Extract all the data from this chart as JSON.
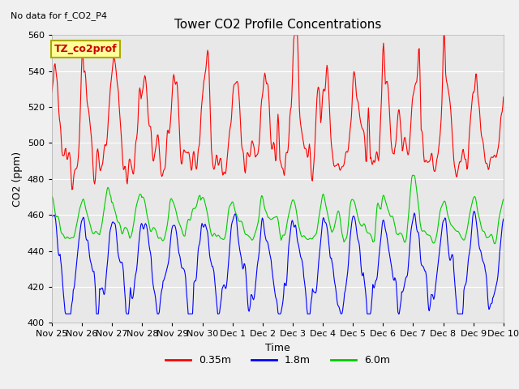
{
  "title": "Tower CO2 Profile Concentrations",
  "subtitle": "No data for f_CO2_P4",
  "xlabel": "Time",
  "ylabel": "CO2 (ppm)",
  "ylim": [
    400,
    560
  ],
  "yticks": [
    400,
    420,
    440,
    460,
    480,
    500,
    520,
    540,
    560
  ],
  "x_tick_labels": [
    "Nov 25",
    "Nov 26",
    "Nov 27",
    "Nov 28",
    "Nov 29",
    "Nov 30",
    "Dec 1",
    "Dec 2",
    "Dec 3",
    "Dec 4",
    "Dec 5",
    "Dec 6",
    "Dec 7",
    "Dec 8",
    "Dec 9",
    "Dec 10"
  ],
  "legend_labels": [
    "0.35m",
    "1.8m",
    "6.0m"
  ],
  "legend_colors": [
    "#ff0000",
    "#0000ff",
    "#00cc00"
  ],
  "line_width": 0.8,
  "fig_bg_color": "#f0f0f0",
  "plot_bg_color": "#e8e8e8",
  "grid_color": "#ffffff",
  "annotation_text": "TZ_co2prof",
  "annotation_bg": "#ffff99",
  "annotation_border": "#aaaa00"
}
